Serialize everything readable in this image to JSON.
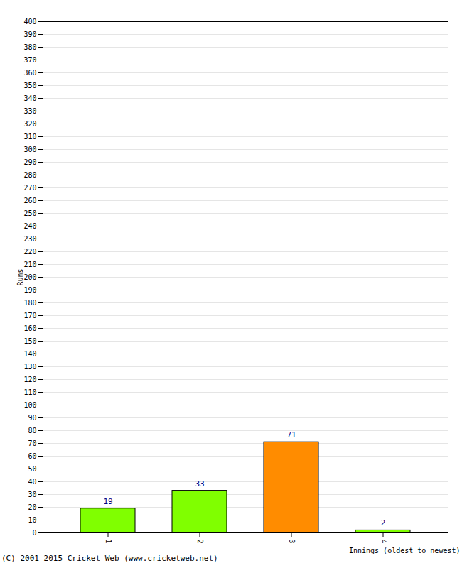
{
  "chart_data": {
    "type": "bar",
    "categories": [
      "1",
      "2",
      "3",
      "4"
    ],
    "values": [
      19,
      33,
      71,
      2
    ],
    "colors": [
      "#80ff00",
      "#80ff00",
      "#ff8c00",
      "#80ff00"
    ],
    "xlabel": "Innings (oldest to newest)",
    "ylabel": "Runs",
    "caption": "(C) 2001-2015 Cricket Web (www.cricketweb.net)",
    "ylim": [
      0,
      400
    ],
    "yticks": [
      0,
      10,
      20,
      30,
      40,
      50,
      60,
      70,
      80,
      90,
      100,
      110,
      120,
      130,
      140,
      150,
      160,
      170,
      180,
      190,
      200,
      210,
      220,
      230,
      240,
      250,
      260,
      270,
      280,
      290,
      300,
      310,
      320,
      330,
      340,
      350,
      360,
      370,
      380,
      390,
      400
    ],
    "grid": true,
    "data_labels": true
  }
}
